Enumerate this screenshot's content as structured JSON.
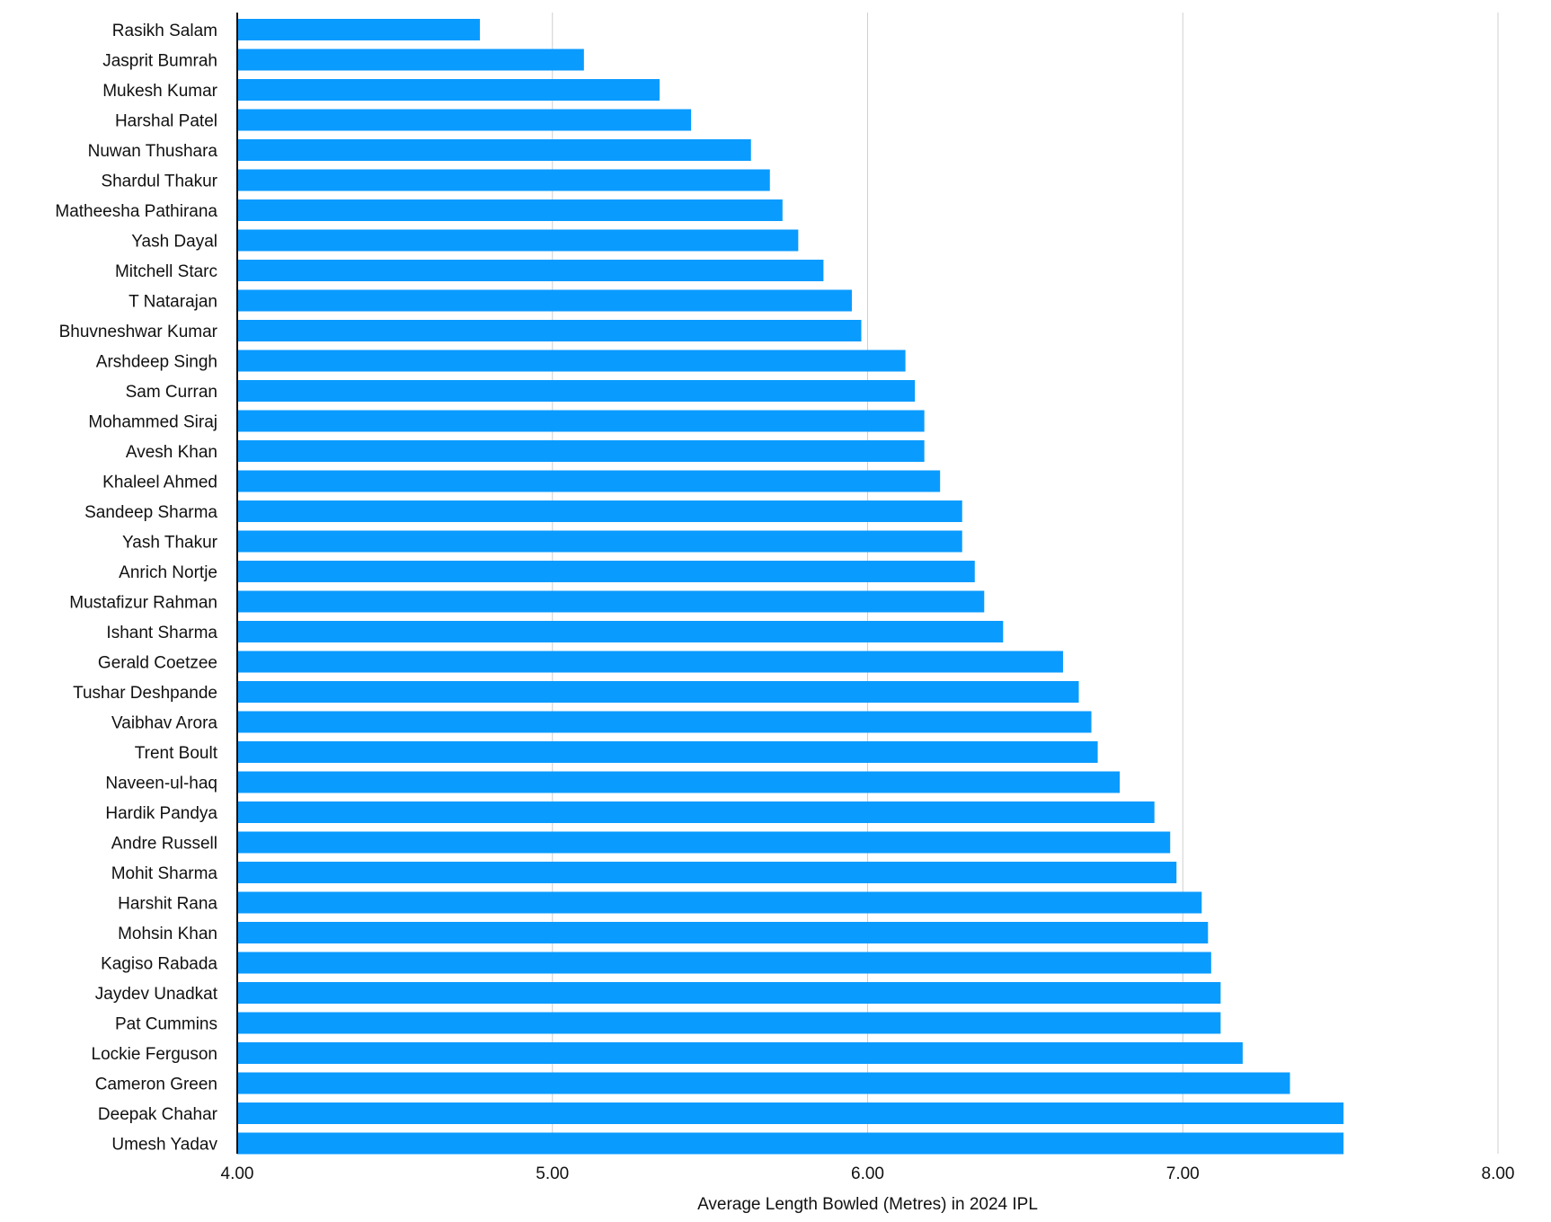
{
  "chart_data": {
    "type": "bar",
    "orientation": "horizontal",
    "title": "",
    "xlabel": "Average Length Bowled (Metres) in 2024 IPL",
    "ylabel": "",
    "xlim": [
      4.0,
      8.0
    ],
    "xticks": [
      "4.00",
      "5.00",
      "6.00",
      "7.00",
      "8.00"
    ],
    "grid": true,
    "bar_color": "#0a9bff",
    "categories": [
      "Rasikh Salam",
      "Jasprit Bumrah",
      "Mukesh Kumar",
      "Harshal Patel",
      "Nuwan Thushara",
      "Shardul Thakur",
      "Matheesha Pathirana",
      "Yash Dayal",
      "Mitchell Starc",
      "T Natarajan",
      "Bhuvneshwar Kumar",
      "Arshdeep Singh",
      "Sam Curran",
      "Mohammed Siraj",
      "Avesh Khan",
      "Khaleel Ahmed",
      "Sandeep Sharma",
      "Yash Thakur",
      "Anrich Nortje",
      "Mustafizur Rahman",
      "Ishant Sharma",
      "Gerald Coetzee",
      "Tushar Deshpande",
      "Vaibhav Arora",
      "Trent Boult",
      "Naveen-ul-haq",
      "Hardik Pandya",
      "Andre Russell",
      "Mohit Sharma",
      "Harshit Rana",
      "Mohsin Khan",
      "Kagiso Rabada",
      "Jaydev Unadkat",
      "Pat Cummins",
      "Lockie Ferguson",
      "Cameron Green",
      "Deepak Chahar",
      "Umesh Yadav"
    ],
    "values": [
      4.77,
      5.1,
      5.34,
      5.44,
      5.63,
      5.69,
      5.73,
      5.78,
      5.86,
      5.95,
      5.98,
      6.12,
      6.15,
      6.18,
      6.18,
      6.23,
      6.3,
      6.3,
      6.34,
      6.37,
      6.43,
      6.62,
      6.67,
      6.71,
      6.73,
      6.8,
      6.91,
      6.96,
      6.98,
      7.06,
      7.08,
      7.09,
      7.12,
      7.12,
      7.19,
      7.34,
      7.51,
      7.51
    ]
  }
}
